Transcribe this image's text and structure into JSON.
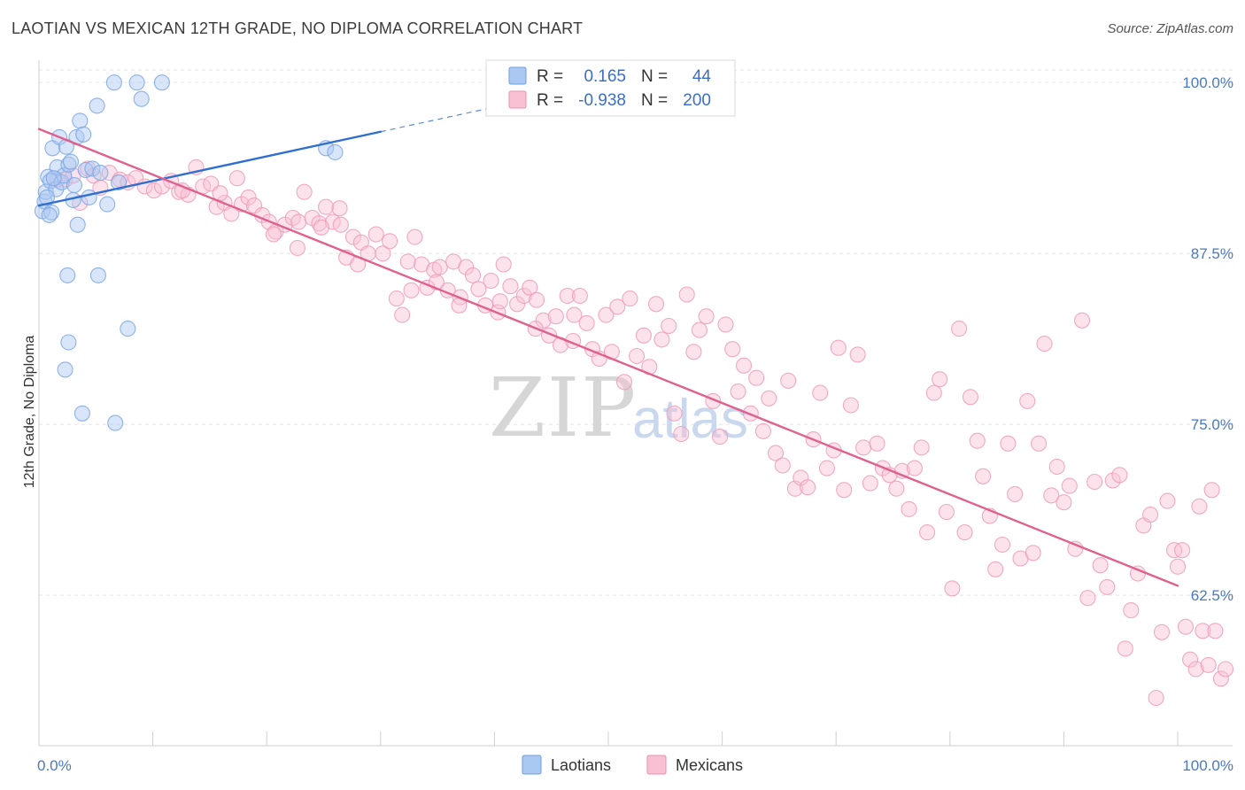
{
  "chart_data": {
    "type": "scatter",
    "title": "LAOTIAN VS MEXICAN 12TH GRADE, NO DIPLOMA CORRELATION CHART",
    "source": "Source: ZipAtlas.com",
    "ylabel": "12th Grade, No Diploma",
    "xlabel": "",
    "xlim": [
      0,
      100
    ],
    "ylim": [
      51.5,
      101.5
    ],
    "x_tick_labels": [
      "0.0%",
      "100.0%"
    ],
    "y_ticks": [
      62.5,
      75.0,
      87.5,
      100.0
    ],
    "y_tick_labels": [
      "62.5%",
      "75.0%",
      "87.5%",
      "100.0%"
    ],
    "watermark": {
      "main": "ZIP",
      "sub": "atlas"
    },
    "legend": {
      "r_label": "R =",
      "n_label": "N =",
      "entries": [
        {
          "name": "Laotians",
          "r": "0.165",
          "n": "44",
          "fill": "#aac8f2",
          "stroke": "#6e9fe0"
        },
        {
          "name": "Mexicans",
          "r": "-0.938",
          "n": "200",
          "fill": "#f8c0d2",
          "stroke": "#ec8fb0"
        }
      ]
    },
    "series": [
      {
        "name": "Laotians",
        "color": "#7aa6e6",
        "line_color": "#2f6fcf",
        "trend": {
          "x0": 0,
          "y0": 91.0,
          "x1": 30,
          "y1": 96.4,
          "dash_to_x": 40
        },
        "points": [
          [
            0.3,
            90.6
          ],
          [
            0.5,
            91.3
          ],
          [
            0.6,
            92.0
          ],
          [
            0.8,
            93.1
          ],
          [
            1.0,
            92.8
          ],
          [
            1.1,
            90.5
          ],
          [
            1.2,
            95.2
          ],
          [
            1.5,
            92.2
          ],
          [
            1.6,
            93.8
          ],
          [
            1.8,
            96.0
          ],
          [
            2.0,
            92.7
          ],
          [
            2.2,
            93.2
          ],
          [
            2.4,
            95.3
          ],
          [
            2.6,
            94.0
          ],
          [
            2.8,
            94.2
          ],
          [
            3.0,
            91.4
          ],
          [
            3.3,
            96.0
          ],
          [
            3.4,
            89.6
          ],
          [
            3.6,
            97.2
          ],
          [
            3.9,
            96.2
          ],
          [
            4.1,
            93.6
          ],
          [
            4.4,
            91.6
          ],
          [
            4.7,
            93.7
          ],
          [
            5.1,
            98.3
          ],
          [
            5.4,
            93.4
          ],
          [
            6.0,
            91.1
          ],
          [
            6.6,
            100.0
          ],
          [
            7.0,
            92.7
          ],
          [
            8.6,
            100.0
          ],
          [
            9.0,
            98.8
          ],
          [
            10.8,
            100.0
          ],
          [
            2.5,
            85.9
          ],
          [
            5.2,
            85.9
          ],
          [
            7.8,
            82.0
          ],
          [
            2.6,
            81.0
          ],
          [
            2.3,
            79.0
          ],
          [
            3.8,
            75.8
          ],
          [
            6.7,
            75.1
          ],
          [
            25.2,
            95.2
          ],
          [
            26.0,
            94.9
          ],
          [
            0.9,
            90.3
          ],
          [
            0.7,
            91.6
          ],
          [
            1.3,
            93.0
          ],
          [
            3.1,
            92.5
          ]
        ]
      },
      {
        "name": "Mexicans",
        "color": "#ee9bb8",
        "line_color": "#e0608e",
        "trend": {
          "x0": 0,
          "y0": 96.6,
          "x1": 100,
          "y1": 63.2
        },
        "points": [
          [
            1.6,
            92.9
          ],
          [
            2.3,
            92.9
          ],
          [
            3.0,
            93.2
          ],
          [
            3.6,
            91.2
          ],
          [
            4.3,
            93.7
          ],
          [
            4.8,
            93.2
          ],
          [
            5.4,
            92.3
          ],
          [
            6.2,
            93.4
          ],
          [
            7.1,
            92.9
          ],
          [
            7.8,
            92.7
          ],
          [
            8.5,
            93.0
          ],
          [
            9.3,
            92.4
          ],
          [
            10.1,
            92.1
          ],
          [
            10.8,
            92.4
          ],
          [
            11.6,
            92.8
          ],
          [
            12.3,
            92.0
          ],
          [
            13.1,
            91.8
          ],
          [
            13.8,
            93.8
          ],
          [
            14.4,
            92.4
          ],
          [
            15.1,
            92.6
          ],
          [
            15.6,
            90.9
          ],
          [
            16.3,
            91.2
          ],
          [
            16.9,
            90.4
          ],
          [
            17.4,
            93.0
          ],
          [
            17.8,
            91.1
          ],
          [
            18.4,
            91.6
          ],
          [
            18.9,
            91.0
          ],
          [
            19.6,
            90.3
          ],
          [
            20.2,
            89.8
          ],
          [
            20.8,
            89.1
          ],
          [
            21.6,
            89.6
          ],
          [
            22.3,
            90.1
          ],
          [
            22.8,
            89.8
          ],
          [
            23.3,
            92.0
          ],
          [
            24.0,
            90.1
          ],
          [
            24.6,
            89.7
          ],
          [
            25.2,
            90.9
          ],
          [
            25.8,
            89.8
          ],
          [
            26.4,
            90.8
          ],
          [
            27.0,
            87.2
          ],
          [
            27.6,
            88.7
          ],
          [
            28.3,
            88.3
          ],
          [
            28.9,
            87.5
          ],
          [
            29.6,
            88.9
          ],
          [
            30.2,
            87.5
          ],
          [
            30.8,
            88.4
          ],
          [
            31.4,
            84.2
          ],
          [
            31.9,
            83.0
          ],
          [
            32.4,
            86.9
          ],
          [
            33.0,
            88.7
          ],
          [
            33.6,
            86.7
          ],
          [
            34.1,
            85.0
          ],
          [
            34.7,
            86.3
          ],
          [
            35.2,
            86.5
          ],
          [
            35.9,
            84.8
          ],
          [
            36.4,
            86.9
          ],
          [
            37.0,
            84.3
          ],
          [
            37.5,
            86.5
          ],
          [
            38.1,
            85.9
          ],
          [
            38.6,
            84.9
          ],
          [
            39.2,
            83.7
          ],
          [
            39.7,
            85.5
          ],
          [
            40.3,
            83.2
          ],
          [
            40.8,
            86.7
          ],
          [
            41.4,
            85.1
          ],
          [
            42.0,
            83.8
          ],
          [
            42.6,
            84.4
          ],
          [
            43.1,
            85.0
          ],
          [
            43.7,
            84.1
          ],
          [
            44.3,
            82.6
          ],
          [
            44.8,
            81.5
          ],
          [
            45.4,
            82.9
          ],
          [
            45.8,
            80.8
          ],
          [
            46.4,
            84.4
          ],
          [
            47.0,
            83.0
          ],
          [
            47.5,
            84.4
          ],
          [
            48.1,
            82.4
          ],
          [
            48.6,
            80.5
          ],
          [
            49.2,
            79.8
          ],
          [
            49.8,
            83.0
          ],
          [
            50.3,
            80.3
          ],
          [
            50.8,
            83.6
          ],
          [
            51.4,
            78.1
          ],
          [
            51.9,
            84.2
          ],
          [
            52.5,
            80.0
          ],
          [
            53.1,
            81.5
          ],
          [
            53.6,
            79.2
          ],
          [
            54.2,
            83.8
          ],
          [
            54.7,
            81.2
          ],
          [
            55.3,
            82.2
          ],
          [
            55.8,
            75.8
          ],
          [
            56.4,
            74.3
          ],
          [
            56.9,
            84.5
          ],
          [
            57.5,
            80.3
          ],
          [
            58.0,
            81.9
          ],
          [
            58.6,
            82.9
          ],
          [
            59.2,
            76.7
          ],
          [
            59.8,
            74.1
          ],
          [
            60.3,
            82.3
          ],
          [
            60.9,
            80.5
          ],
          [
            61.4,
            77.4
          ],
          [
            61.9,
            79.3
          ],
          [
            62.5,
            75.8
          ],
          [
            63.0,
            78.4
          ],
          [
            63.6,
            74.5
          ],
          [
            64.1,
            76.9
          ],
          [
            64.7,
            72.9
          ],
          [
            65.3,
            72.0
          ],
          [
            65.8,
            78.2
          ],
          [
            66.4,
            70.3
          ],
          [
            66.9,
            71.1
          ],
          [
            67.5,
            70.4
          ],
          [
            68.0,
            73.9
          ],
          [
            68.6,
            77.3
          ],
          [
            69.2,
            71.8
          ],
          [
            69.8,
            73.1
          ],
          [
            70.2,
            80.6
          ],
          [
            70.7,
            70.2
          ],
          [
            71.3,
            76.4
          ],
          [
            71.9,
            80.1
          ],
          [
            72.4,
            73.3
          ],
          [
            73.0,
            70.7
          ],
          [
            73.6,
            73.6
          ],
          [
            74.1,
            71.8
          ],
          [
            74.7,
            71.3
          ],
          [
            75.3,
            70.3
          ],
          [
            75.8,
            71.6
          ],
          [
            76.4,
            68.8
          ],
          [
            76.9,
            71.8
          ],
          [
            77.5,
            73.3
          ],
          [
            78.0,
            67.1
          ],
          [
            78.6,
            77.3
          ],
          [
            79.1,
            78.3
          ],
          [
            79.7,
            68.6
          ],
          [
            80.2,
            63.0
          ],
          [
            80.8,
            82.0
          ],
          [
            81.3,
            67.1
          ],
          [
            81.8,
            77.0
          ],
          [
            82.4,
            73.8
          ],
          [
            82.9,
            71.2
          ],
          [
            83.5,
            68.3
          ],
          [
            84.0,
            64.4
          ],
          [
            84.6,
            66.2
          ],
          [
            85.1,
            73.6
          ],
          [
            85.7,
            69.9
          ],
          [
            86.2,
            65.2
          ],
          [
            86.8,
            76.7
          ],
          [
            87.3,
            65.6
          ],
          [
            87.8,
            73.6
          ],
          [
            88.3,
            80.9
          ],
          [
            88.9,
            69.8
          ],
          [
            89.4,
            71.9
          ],
          [
            90.0,
            69.3
          ],
          [
            90.5,
            70.5
          ],
          [
            91.0,
            65.9
          ],
          [
            91.6,
            82.6
          ],
          [
            92.1,
            62.3
          ],
          [
            92.7,
            70.8
          ],
          [
            93.2,
            64.7
          ],
          [
            93.8,
            63.1
          ],
          [
            94.3,
            70.9
          ],
          [
            94.9,
            71.3
          ],
          [
            95.4,
            58.6
          ],
          [
            95.9,
            61.4
          ],
          [
            96.5,
            64.1
          ],
          [
            97.0,
            67.6
          ],
          [
            97.6,
            68.4
          ],
          [
            98.1,
            55.0
          ],
          [
            98.6,
            59.8
          ],
          [
            99.1,
            69.4
          ],
          [
            99.7,
            65.8
          ],
          [
            100.0,
            64.6
          ],
          [
            100.4,
            65.8
          ],
          [
            100.7,
            60.2
          ],
          [
            101.1,
            57.8
          ],
          [
            101.6,
            57.1
          ],
          [
            101.9,
            69.0
          ],
          [
            102.2,
            59.9
          ],
          [
            102.7,
            57.4
          ],
          [
            103.0,
            70.2
          ],
          [
            103.3,
            59.9
          ],
          [
            103.8,
            56.4
          ],
          [
            104.2,
            57.1
          ],
          [
            20.6,
            88.9
          ],
          [
            22.7,
            87.9
          ],
          [
            26.5,
            89.6
          ],
          [
            28.0,
            86.7
          ],
          [
            32.7,
            84.8
          ],
          [
            36.9,
            83.7
          ],
          [
            40.5,
            84.0
          ],
          [
            43.6,
            82.0
          ],
          [
            46.9,
            81.1
          ],
          [
            12.6,
            92.1
          ],
          [
            24.8,
            89.4
          ],
          [
            34.9,
            85.4
          ],
          [
            15.9,
            91.9
          ]
        ]
      }
    ]
  }
}
